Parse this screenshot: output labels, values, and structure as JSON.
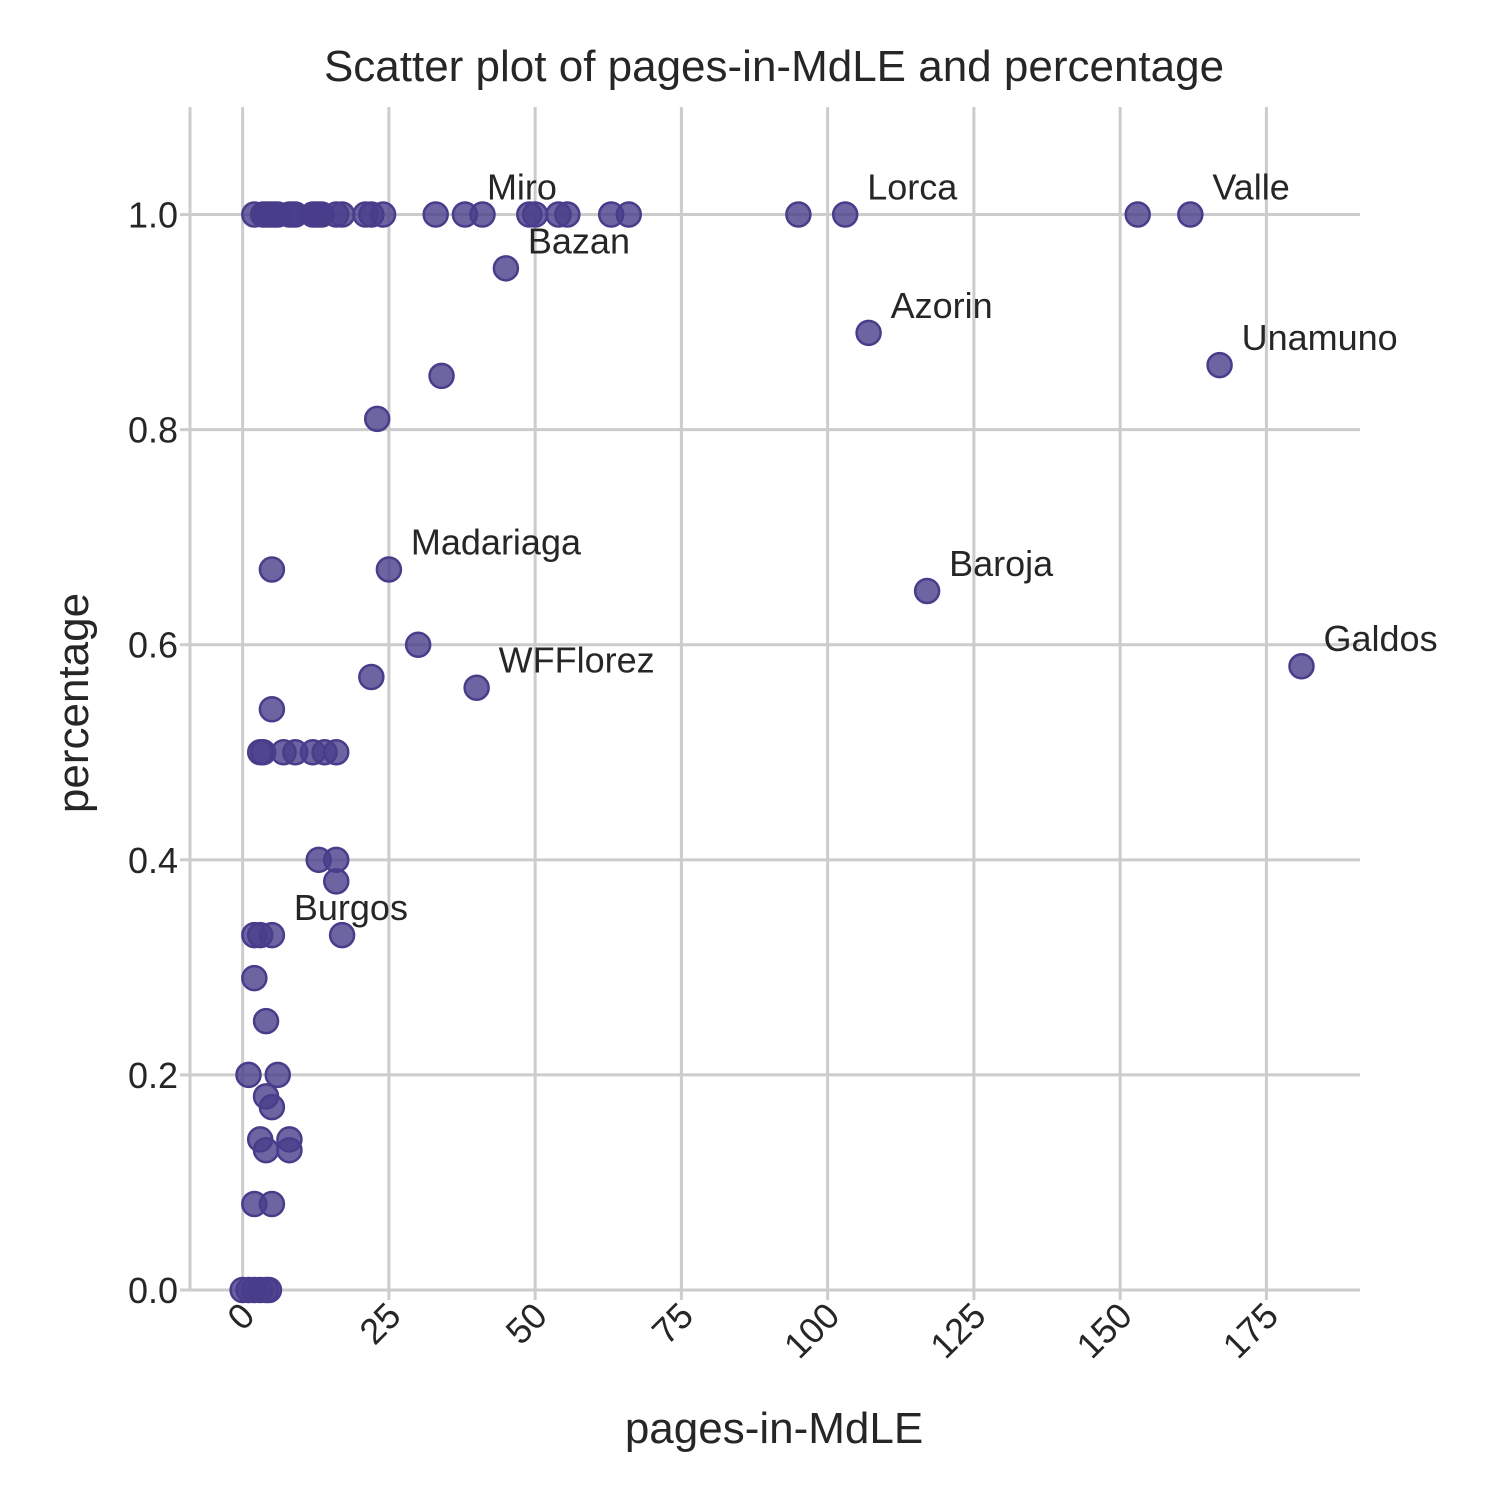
{
  "chart_data": {
    "type": "scatter",
    "title": "Scatter plot of pages-in-MdLE and percentage",
    "xlabel": "pages-in-MdLE",
    "ylabel": "percentage",
    "xlim": [
      -9,
      191
    ],
    "ylim": [
      0,
      1.1
    ],
    "x_ticks": [
      0,
      25,
      50,
      75,
      100,
      125,
      150,
      175
    ],
    "y_ticks": [
      0.0,
      0.2,
      0.4,
      0.6,
      0.8,
      1.0
    ],
    "y_tick_labels": [
      "0.0",
      "0.2",
      "0.4",
      "0.6",
      "0.8",
      "1.0"
    ],
    "grid": true,
    "marker_color": "#483D8B",
    "points": [
      {
        "x": 2,
        "y": 1.0
      },
      {
        "x": 3.5,
        "y": 1.0
      },
      {
        "x": 4,
        "y": 1.0
      },
      {
        "x": 4.5,
        "y": 1.0
      },
      {
        "x": 5,
        "y": 1.0
      },
      {
        "x": 5.5,
        "y": 1.0
      },
      {
        "x": 6,
        "y": 1.0
      },
      {
        "x": 8,
        "y": 1.0
      },
      {
        "x": 8.5,
        "y": 1.0
      },
      {
        "x": 9,
        "y": 1.0
      },
      {
        "x": 12,
        "y": 1.0
      },
      {
        "x": 12.5,
        "y": 1.0
      },
      {
        "x": 13,
        "y": 1.0
      },
      {
        "x": 13.5,
        "y": 1.0
      },
      {
        "x": 16,
        "y": 1.0
      },
      {
        "x": 17,
        "y": 1.0
      },
      {
        "x": 21,
        "y": 1.0
      },
      {
        "x": 22,
        "y": 1.0
      },
      {
        "x": 24,
        "y": 1.0
      },
      {
        "x": 33,
        "y": 1.0
      },
      {
        "x": 38,
        "y": 1.0
      },
      {
        "x": 41,
        "y": 1.0
      },
      {
        "x": 49,
        "y": 1.0
      },
      {
        "x": 50,
        "y": 1.0
      },
      {
        "x": 54,
        "y": 1.0
      },
      {
        "x": 55.5,
        "y": 1.0
      },
      {
        "x": 63,
        "y": 1.0
      },
      {
        "x": 66,
        "y": 1.0
      },
      {
        "x": 95,
        "y": 1.0
      },
      {
        "x": 103,
        "y": 1.0
      },
      {
        "x": 153,
        "y": 1.0
      },
      {
        "x": 162,
        "y": 1.0
      },
      {
        "x": 45,
        "y": 0.95
      },
      {
        "x": 107,
        "y": 0.89
      },
      {
        "x": 167,
        "y": 0.86
      },
      {
        "x": 34,
        "y": 0.85
      },
      {
        "x": 23,
        "y": 0.81
      },
      {
        "x": 5,
        "y": 0.67
      },
      {
        "x": 25,
        "y": 0.67
      },
      {
        "x": 117,
        "y": 0.65
      },
      {
        "x": 30,
        "y": 0.6
      },
      {
        "x": 181,
        "y": 0.58
      },
      {
        "x": 22,
        "y": 0.57
      },
      {
        "x": 40,
        "y": 0.56
      },
      {
        "x": 5,
        "y": 0.54
      },
      {
        "x": 3,
        "y": 0.5
      },
      {
        "x": 3.5,
        "y": 0.5
      },
      {
        "x": 7,
        "y": 0.5
      },
      {
        "x": 9,
        "y": 0.5
      },
      {
        "x": 12,
        "y": 0.5
      },
      {
        "x": 14,
        "y": 0.5
      },
      {
        "x": 16,
        "y": 0.5
      },
      {
        "x": 13,
        "y": 0.4
      },
      {
        "x": 16,
        "y": 0.4
      },
      {
        "x": 16,
        "y": 0.38
      },
      {
        "x": 2,
        "y": 0.33
      },
      {
        "x": 3,
        "y": 0.33
      },
      {
        "x": 5,
        "y": 0.33
      },
      {
        "x": 17,
        "y": 0.33
      },
      {
        "x": 2,
        "y": 0.29
      },
      {
        "x": 4,
        "y": 0.25
      },
      {
        "x": 1,
        "y": 0.2
      },
      {
        "x": 6,
        "y": 0.2
      },
      {
        "x": 4,
        "y": 0.18
      },
      {
        "x": 5,
        "y": 0.17
      },
      {
        "x": 3,
        "y": 0.14
      },
      {
        "x": 8,
        "y": 0.14
      },
      {
        "x": 4,
        "y": 0.13
      },
      {
        "x": 8,
        "y": 0.13
      },
      {
        "x": 2,
        "y": 0.08
      },
      {
        "x": 5,
        "y": 0.08
      },
      {
        "x": 0,
        "y": 0.0
      },
      {
        "x": 1,
        "y": 0.0
      },
      {
        "x": 2,
        "y": 0.0
      },
      {
        "x": 3,
        "y": 0.0
      },
      {
        "x": 4,
        "y": 0.0
      },
      {
        "x": 4.5,
        "y": 0.0
      }
    ],
    "annotations": [
      {
        "text": "Miro",
        "x": 38,
        "y": 1.0
      },
      {
        "text": "Lorca",
        "x": 103,
        "y": 1.0
      },
      {
        "text": "Valle",
        "x": 162,
        "y": 1.0
      },
      {
        "text": "Bazan",
        "x": 45,
        "y": 0.95
      },
      {
        "text": "Azorin",
        "x": 107,
        "y": 0.89
      },
      {
        "text": "Unamuno",
        "x": 167,
        "y": 0.86
      },
      {
        "text": "Madariaga",
        "x": 25,
        "y": 0.67
      },
      {
        "text": "Baroja",
        "x": 117,
        "y": 0.65
      },
      {
        "text": "WFFlorez",
        "x": 40,
        "y": 0.56
      },
      {
        "text": "Galdos",
        "x": 181,
        "y": 0.58
      },
      {
        "text": "Burgos",
        "x": 5,
        "y": 0.33
      }
    ]
  }
}
